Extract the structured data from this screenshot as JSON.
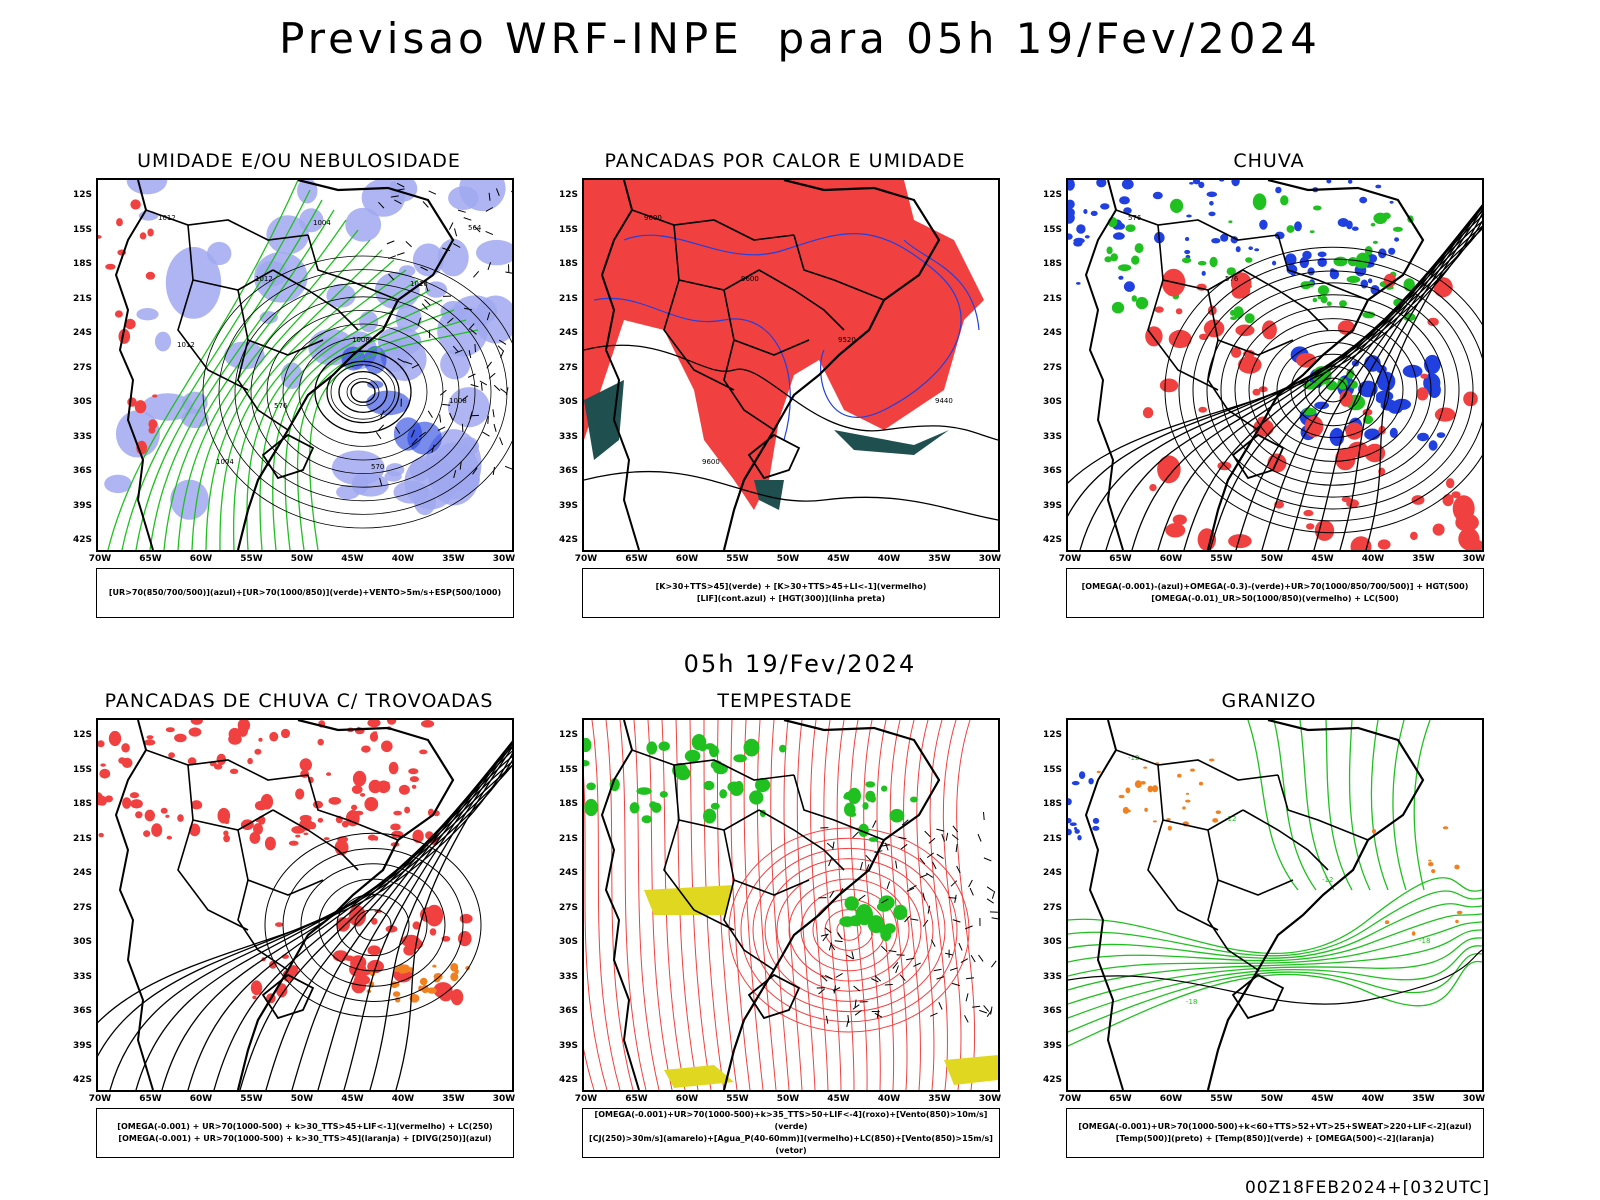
{
  "header": {
    "title": "Previsao WRF-INPE  para 05h 19/Fev/2024",
    "middle_title": "05h 19/Fev/2024",
    "footer_stamp": "00Z18FEB2024+[032UTC]"
  },
  "axes": {
    "lat_labels": [
      "12S",
      "15S",
      "18S",
      "21S",
      "24S",
      "27S",
      "30S",
      "33S",
      "36S",
      "39S",
      "42S"
    ],
    "lon_labels": [
      "70W",
      "65W",
      "60W",
      "55W",
      "50W",
      "45W",
      "40W",
      "35W",
      "30W"
    ]
  },
  "colors": {
    "red": "#f04040",
    "blue": "#2040e0",
    "green": "#20c020",
    "lavender": "#a0a8f0",
    "dark_teal": "#1f4f4f",
    "yellow": "#e0d820",
    "orange": "#f08020"
  },
  "panels": [
    {
      "id": "umidade",
      "title": "UMIDADE E/OU NEBULOSIDADE",
      "legend_lines": [
        "[UR>70(850/700/500)](azul)+[UR>70(1000/850)](verde)+VENTO>5m/s+ESP(500/1000)"
      ],
      "contour_labels": [
        "1012",
        "1012",
        "1008",
        "1008",
        "1004",
        "1004",
        "1016",
        "1012",
        "576",
        "570",
        "564"
      ]
    },
    {
      "id": "pancadas-calor",
      "title": "PANCADAS POR CALOR E UMIDADE",
      "legend_lines": [
        "[K>30+TTS>45](verde) + [K>30+TTS>45+LI<-1](vermelho)",
        "[LIF](cont.azul) + [HGT(300)](linha preta)"
      ],
      "contour_labels": [
        "9600",
        "9600",
        "9520",
        "9440",
        "9600"
      ]
    },
    {
      "id": "chuva",
      "title": "CHUVA",
      "legend_lines": [
        "[OMEGA(-0.001)-(azul)+OMEGA(-0.3)-(verde)+UR>70(1000/850/700/500)] + HGT(500)",
        "[OMEGA(-0.01)_UR>50(1000/850)(vermelho) + LC(500)"
      ],
      "contour_labels": [
        "576",
        "576"
      ]
    },
    {
      "id": "pancadas-trovoadas",
      "title": "PANCADAS DE CHUVA C/ TROVOADAS",
      "legend_lines": [
        "[OMEGA(-0.001) + UR>70(1000-500) + k>30_TTS>45+LIF<-1](vermelho) + LC(250)",
        "[OMEGA(-0.001) + UR>70(1000-500) + k>30_TTS>45](laranja) + [DIVG(250)](azul)"
      ],
      "contour_labels": []
    },
    {
      "id": "tempestade",
      "title": "TEMPESTADE",
      "legend_lines": [
        "[OMEGA(-0.001)+UR>70(1000-500)+k>35_TTS>50+LIF<-4](roxo)+[Vento(850)>10m/s](verde)",
        "[CJ(250)>30m/s](amarelo)+[Agua_P(40-60mm)](vermelho)+LC(850)+[Vento(850)>15m/s](vetor)"
      ],
      "contour_labels": []
    },
    {
      "id": "granizo",
      "title": "GRANIZO",
      "legend_lines": [
        "[OMEGA(-0.001)+UR>70(1000-500)+k<60+TTS>52+VT>25+SWEAT>220+LIF<-2](azul)",
        "[Temp(500)](preto) + [Temp(850)](verde) + [OMEGA(500)<-2](laranja)"
      ],
      "contour_labels": [
        "-12",
        "-12",
        "-12",
        "-18",
        "-18"
      ]
    }
  ]
}
